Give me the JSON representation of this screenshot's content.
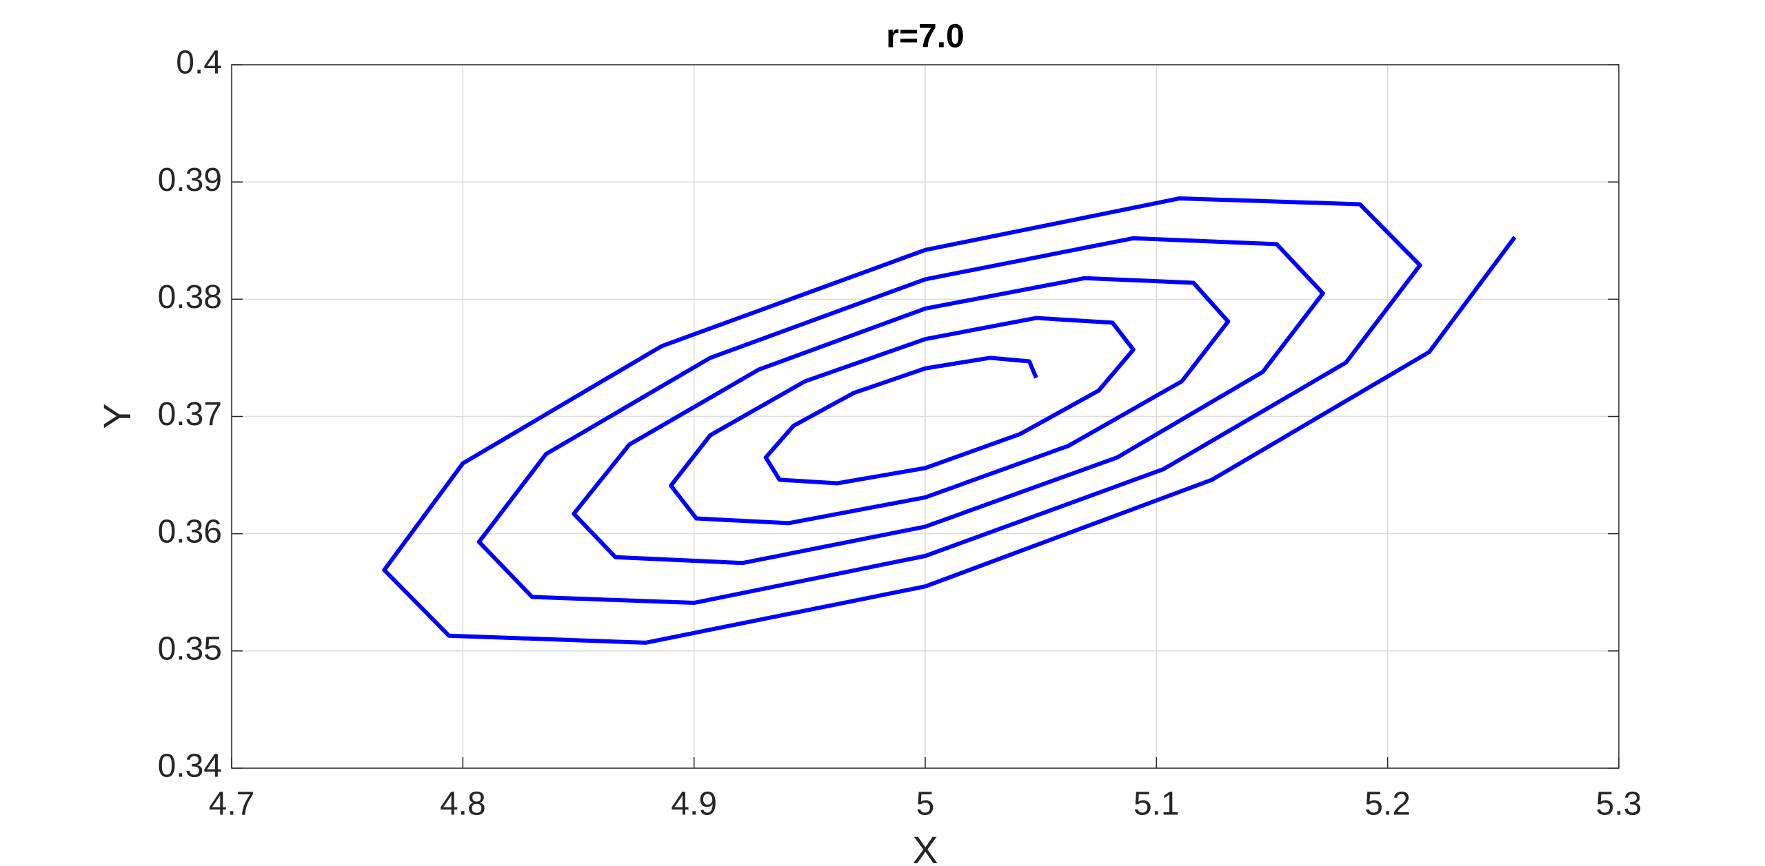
{
  "chart_data": {
    "type": "line",
    "title": "r=7.0",
    "xlabel": "X",
    "ylabel": "Y",
    "xlim": [
      4.7,
      5.3
    ],
    "xticks": [
      4.7,
      4.8,
      4.9,
      5,
      5.1,
      5.2,
      5.3
    ],
    "ylim": [
      0.34,
      0.4
    ],
    "yticks": [
      0.34,
      0.35,
      0.36,
      0.37,
      0.38,
      0.39,
      0.4
    ],
    "grid": true,
    "series": [
      {
        "color": "#0000ff",
        "x": [
          5.048,
          5.045,
          5.028,
          5.0,
          4.969,
          4.943,
          4.931,
          4.937,
          4.962,
          5.0,
          5.041,
          5.075,
          5.09,
          5.081,
          5.048,
          5.0,
          4.948,
          4.907,
          4.89,
          4.901,
          4.941,
          5.0,
          5.062,
          5.111,
          5.131,
          5.116,
          5.069,
          5.0,
          4.928,
          4.872,
          4.848,
          4.866,
          4.921,
          5.0,
          5.083,
          5.146,
          5.172,
          5.152,
          5.09,
          5.0,
          4.907,
          4.836,
          4.807,
          4.83,
          4.9,
          5.0,
          5.103,
          5.182,
          5.214,
          5.188,
          5.11,
          5.0,
          4.886,
          4.8,
          4.766,
          4.794,
          4.879,
          5.0,
          5.124,
          5.218,
          5.255
        ],
        "values": [
          0.3733,
          0.3747,
          0.375,
          0.3741,
          0.372,
          0.3692,
          0.3665,
          0.3646,
          0.3643,
          0.3656,
          0.3685,
          0.3722,
          0.3757,
          0.378,
          0.3784,
          0.3766,
          0.373,
          0.3684,
          0.3641,
          0.3613,
          0.3609,
          0.3631,
          0.3675,
          0.373,
          0.3781,
          0.3814,
          0.3818,
          0.3792,
          0.374,
          0.3676,
          0.3617,
          0.358,
          0.3575,
          0.3606,
          0.3665,
          0.3738,
          0.3805,
          0.3847,
          0.3852,
          0.3817,
          0.375,
          0.3668,
          0.3593,
          0.3546,
          0.3541,
          0.3581,
          0.3655,
          0.3746,
          0.3829,
          0.3881,
          0.3886,
          0.3842,
          0.376,
          0.366,
          0.3569,
          0.3513,
          0.3507,
          0.3555,
          0.3646,
          0.3755,
          0.3853
        ]
      }
    ]
  }
}
